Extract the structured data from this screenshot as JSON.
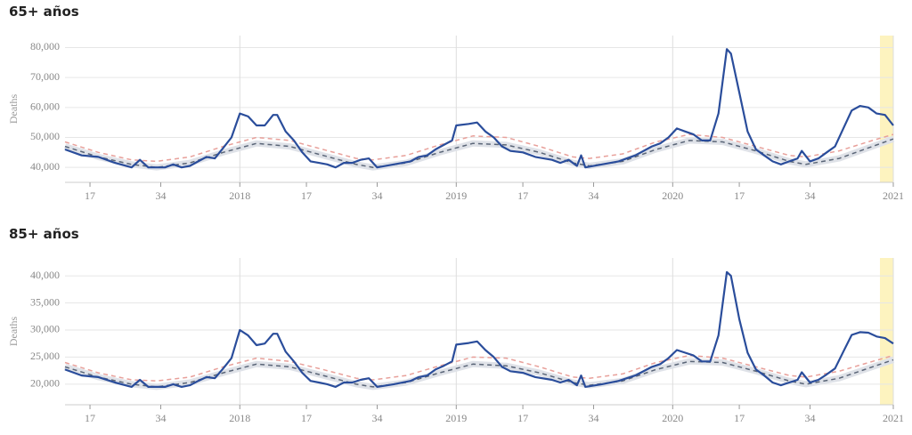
{
  "chart_data": [
    {
      "type": "line",
      "title": "65+ años",
      "ylabel": "Deaths",
      "xlim": [
        "2017-W11",
        "2021-W01"
      ],
      "xticks": [
        {
          "value": "2017-W17",
          "label": "17"
        },
        {
          "value": "2017-W34",
          "label": "34"
        },
        {
          "value": "2018-W01",
          "label": "2018"
        },
        {
          "value": "2018-W17",
          "label": "17"
        },
        {
          "value": "2018-W34",
          "label": "34"
        },
        {
          "value": "2019-W01",
          "label": "2019"
        },
        {
          "value": "2019-W17",
          "label": "17"
        },
        {
          "value": "2019-W34",
          "label": "34"
        },
        {
          "value": "2020-W01",
          "label": "2020"
        },
        {
          "value": "2020-W17",
          "label": "17"
        },
        {
          "value": "2020-W34",
          "label": "34"
        },
        {
          "value": "2021-W01",
          "label": "2021"
        }
      ],
      "ylim": [
        35000,
        84000
      ],
      "yticks": [
        {
          "value": 40000,
          "label": "40,000"
        },
        {
          "value": 50000,
          "label": "50,000"
        },
        {
          "value": 60000,
          "label": "60,000"
        },
        {
          "value": 70000,
          "label": "70,000"
        },
        {
          "value": 80000,
          "label": "80,000"
        }
      ],
      "series": [
        {
          "color": "#e8a09a",
          "line_style": "dashed",
          "x": [
            "2017-W11",
            "2017-W19",
            "2017-W27",
            "2017-W33",
            "2017-W41",
            "2017-W49",
            "2018-W05",
            "2018-W13",
            "2018-W21",
            "2018-W29",
            "2018-W33",
            "2018-W41",
            "2018-W49",
            "2019-W05",
            "2019-W13",
            "2019-W21",
            "2019-W29",
            "2019-W33",
            "2019-W41",
            "2019-W49",
            "2020-W05",
            "2020-W13",
            "2020-W21",
            "2020-W29",
            "2020-W33",
            "2020-W41",
            "2020-W49",
            "2021-W01"
          ],
          "values": [
            48500,
            45000,
            42500,
            42000,
            43500,
            47000,
            50000,
            49000,
            46000,
            43000,
            42500,
            44000,
            47500,
            50500,
            50000,
            47000,
            43500,
            43000,
            44500,
            48500,
            51000,
            50000,
            47000,
            44000,
            43500,
            45500,
            49000,
            51000
          ]
        },
        {
          "color": "#5a6577",
          "line_style": "dashed",
          "band": true,
          "x": [
            "2017-W11",
            "2017-W19",
            "2017-W27",
            "2017-W33",
            "2017-W41",
            "2017-W49",
            "2018-W05",
            "2018-W13",
            "2018-W21",
            "2018-W29",
            "2018-W33",
            "2018-W41",
            "2018-W49",
            "2019-W05",
            "2019-W13",
            "2019-W21",
            "2019-W29",
            "2019-W33",
            "2019-W41",
            "2019-W49",
            "2020-W05",
            "2020-W13",
            "2020-W21",
            "2020-W29",
            "2020-W33",
            "2020-W41",
            "2020-W49",
            "2021-W01"
          ],
          "values": [
            47000,
            43500,
            41000,
            40000,
            41500,
            45000,
            48000,
            47000,
            44000,
            41000,
            40000,
            41500,
            45000,
            48000,
            47500,
            45000,
            41500,
            40500,
            42000,
            46000,
            49000,
            48500,
            45500,
            42000,
            41000,
            43000,
            47000,
            49500
          ]
        },
        {
          "color": "#2a4d9b",
          "line_style": "solid",
          "x": [
            "2017-W11",
            "2017-W15",
            "2017-W19",
            "2017-W23",
            "2017-W27",
            "2017-W29",
            "2017-W31",
            "2017-W35",
            "2017-W37",
            "2017-W39",
            "2017-W41",
            "2017-W43",
            "2017-W45",
            "2017-W47",
            "2017-W49",
            "2017-W51",
            "2018-W01",
            "2018-W03",
            "2018-W05",
            "2018-W07",
            "2018-W09",
            "2018-W10",
            "2018-W12",
            "2018-W14",
            "2018-W16",
            "2018-W18",
            "2018-W20",
            "2018-W22",
            "2018-W24",
            "2018-W26",
            "2018-W28",
            "2018-W30",
            "2018-W32",
            "2018-W34",
            "2018-W38",
            "2018-W42",
            "2018-W44",
            "2018-W46",
            "2018-W48",
            "2018-W50",
            "2018-W52",
            "2019-W01",
            "2019-W04",
            "2019-W06",
            "2019-W08",
            "2019-W10",
            "2019-W12",
            "2019-W14",
            "2019-W17",
            "2019-W20",
            "2019-W24",
            "2019-W26",
            "2019-W28",
            "2019-W30",
            "2019-W31",
            "2019-W32",
            "2019-W36",
            "2019-W40",
            "2019-W44",
            "2019-W48",
            "2019-W50",
            "2019-W52",
            "2020-W02",
            "2020-W04",
            "2020-W06",
            "2020-W08",
            "2020-W10",
            "2020-W12",
            "2020-W14",
            "2020-W15",
            "2020-W17",
            "2020-W19",
            "2020-W21",
            "2020-W23",
            "2020-W25",
            "2020-W27",
            "2020-W29",
            "2020-W31",
            "2020-W32",
            "2020-W34",
            "2020-W36",
            "2020-W38",
            "2020-W40",
            "2020-W42",
            "2020-W44",
            "2020-W46",
            "2020-W48",
            "2020-W50",
            "2020-W52",
            "2021-W01"
          ],
          "values": [
            46000,
            44000,
            43500,
            41500,
            40000,
            42500,
            40000,
            40000,
            41000,
            40000,
            40500,
            42000,
            43500,
            43000,
            46500,
            50000,
            58000,
            57000,
            54000,
            54000,
            57500,
            57500,
            52000,
            49000,
            45000,
            42000,
            41500,
            41000,
            40000,
            41500,
            41500,
            42500,
            43000,
            40000,
            41000,
            42000,
            43500,
            44000,
            46000,
            47500,
            49000,
            54000,
            54500,
            55000,
            52000,
            50000,
            47000,
            45500,
            45000,
            43500,
            42500,
            41500,
            42500,
            40500,
            44000,
            40000,
            41000,
            42000,
            44000,
            47000,
            48000,
            50000,
            53000,
            52000,
            51000,
            49000,
            49000,
            58000,
            79500,
            78000,
            65000,
            52000,
            46000,
            44000,
            42000,
            41000,
            42000,
            43000,
            45500,
            42000,
            43000,
            45000,
            47000,
            53000,
            59000,
            60500,
            60000,
            58000,
            57500,
            54000
          ]
        }
      ]
    },
    {
      "type": "line",
      "title": "85+ años",
      "ylabel": "Deaths",
      "xlim": [
        "2017-W11",
        "2021-W01"
      ],
      "xticks": [
        {
          "value": "2017-W17",
          "label": "17"
        },
        {
          "value": "2017-W34",
          "label": "34"
        },
        {
          "value": "2018-W01",
          "label": "2018"
        },
        {
          "value": "2018-W17",
          "label": "17"
        },
        {
          "value": "2018-W34",
          "label": "34"
        },
        {
          "value": "2019-W01",
          "label": "2019"
        },
        {
          "value": "2019-W17",
          "label": "17"
        },
        {
          "value": "2019-W34",
          "label": "34"
        },
        {
          "value": "2020-W01",
          "label": "2020"
        },
        {
          "value": "2020-W17",
          "label": "17"
        },
        {
          "value": "2020-W34",
          "label": "34"
        },
        {
          "value": "2021-W01",
          "label": "2021"
        }
      ],
      "ylim": [
        16200,
        43300
      ],
      "yticks": [
        {
          "value": 20000,
          "label": "20,000"
        },
        {
          "value": 25000,
          "label": "25,000"
        },
        {
          "value": 30000,
          "label": "30,000"
        },
        {
          "value": 35000,
          "label": "35,000"
        },
        {
          "value": 40000,
          "label": "40,000"
        }
      ],
      "series": [
        {
          "color": "#e8a09a",
          "line_style": "dashed",
          "x": [
            "2017-W11",
            "2017-W19",
            "2017-W27",
            "2017-W33",
            "2017-W41",
            "2017-W49",
            "2018-W05",
            "2018-W13",
            "2018-W21",
            "2018-W29",
            "2018-W33",
            "2018-W41",
            "2018-W49",
            "2019-W05",
            "2019-W13",
            "2019-W21",
            "2019-W29",
            "2019-W33",
            "2019-W41",
            "2019-W49",
            "2020-W05",
            "2020-W13",
            "2020-W21",
            "2020-W29",
            "2020-W33",
            "2020-W41",
            "2020-W49",
            "2021-W01"
          ],
          "values": [
            24000,
            22100,
            20800,
            20600,
            21300,
            23200,
            24800,
            24200,
            22700,
            21100,
            20800,
            21600,
            23400,
            25000,
            24800,
            23200,
            21300,
            21100,
            21900,
            24000,
            25300,
            24800,
            23200,
            21600,
            21300,
            22400,
            24200,
            25300
          ]
        },
        {
          "color": "#5a6577",
          "line_style": "dashed",
          "band": true,
          "x": [
            "2017-W11",
            "2017-W19",
            "2017-W27",
            "2017-W33",
            "2017-W41",
            "2017-W49",
            "2018-W05",
            "2018-W13",
            "2018-W21",
            "2018-W29",
            "2018-W33",
            "2018-W41",
            "2018-W49",
            "2019-W05",
            "2019-W13",
            "2019-W21",
            "2019-W29",
            "2019-W33",
            "2019-W41",
            "2019-W49",
            "2020-W05",
            "2020-W13",
            "2020-W21",
            "2020-W29",
            "2020-W33",
            "2020-W41",
            "2020-W49",
            "2021-W01"
          ],
          "values": [
            23200,
            21300,
            20000,
            19500,
            20300,
            22100,
            23700,
            23200,
            21600,
            20000,
            19500,
            20300,
            22100,
            23700,
            23400,
            22100,
            20300,
            19800,
            20600,
            22700,
            24200,
            24000,
            22400,
            20600,
            20000,
            21100,
            23200,
            24500
          ]
        },
        {
          "color": "#2a4d9b",
          "line_style": "solid",
          "x": [
            "2017-W11",
            "2017-W15",
            "2017-W19",
            "2017-W23",
            "2017-W27",
            "2017-W29",
            "2017-W31",
            "2017-W35",
            "2017-W37",
            "2017-W39",
            "2017-W41",
            "2017-W43",
            "2017-W45",
            "2017-W47",
            "2017-W49",
            "2017-W51",
            "2018-W01",
            "2018-W03",
            "2018-W05",
            "2018-W07",
            "2018-W09",
            "2018-W10",
            "2018-W12",
            "2018-W14",
            "2018-W16",
            "2018-W18",
            "2018-W20",
            "2018-W22",
            "2018-W24",
            "2018-W26",
            "2018-W28",
            "2018-W30",
            "2018-W32",
            "2018-W34",
            "2018-W38",
            "2018-W42",
            "2018-W44",
            "2018-W46",
            "2018-W48",
            "2018-W50",
            "2018-W52",
            "2019-W01",
            "2019-W04",
            "2019-W06",
            "2019-W08",
            "2019-W10",
            "2019-W12",
            "2019-W14",
            "2019-W17",
            "2019-W20",
            "2019-W24",
            "2019-W26",
            "2019-W28",
            "2019-W30",
            "2019-W31",
            "2019-W32",
            "2019-W36",
            "2019-W40",
            "2019-W44",
            "2019-W48",
            "2019-W50",
            "2019-W52",
            "2020-W02",
            "2020-W04",
            "2020-W06",
            "2020-W08",
            "2020-W10",
            "2020-W12",
            "2020-W14",
            "2020-W15",
            "2020-W17",
            "2020-W19",
            "2020-W21",
            "2020-W23",
            "2020-W25",
            "2020-W27",
            "2020-W29",
            "2020-W31",
            "2020-W32",
            "2020-W34",
            "2020-W36",
            "2020-W38",
            "2020-W40",
            "2020-W42",
            "2020-W44",
            "2020-W46",
            "2020-W48",
            "2020-W50",
            "2020-W52",
            "2021-W01"
          ],
          "values": [
            22700,
            21600,
            21300,
            20300,
            19500,
            20800,
            19500,
            19500,
            20000,
            19500,
            19800,
            20600,
            21300,
            21100,
            22900,
            24800,
            30000,
            29000,
            27200,
            27500,
            29300,
            29300,
            26000,
            24200,
            22100,
            20600,
            20300,
            20000,
            19500,
            20300,
            20300,
            20800,
            21100,
            19500,
            20000,
            20600,
            21300,
            21600,
            22700,
            23400,
            24200,
            27300,
            27600,
            27900,
            26300,
            25000,
            23200,
            22400,
            22100,
            21300,
            20800,
            20300,
            20800,
            19800,
            21600,
            19500,
            20000,
            20600,
            21600,
            23200,
            23700,
            24800,
            26300,
            25800,
            25300,
            24200,
            24200,
            29000,
            40700,
            40000,
            32000,
            25800,
            22700,
            21600,
            20300,
            19800,
            20300,
            20800,
            22200,
            20300,
            20800,
            21800,
            22900,
            26000,
            29100,
            29600,
            29500,
            28800,
            28500,
            27500
          ]
        }
      ]
    }
  ]
}
